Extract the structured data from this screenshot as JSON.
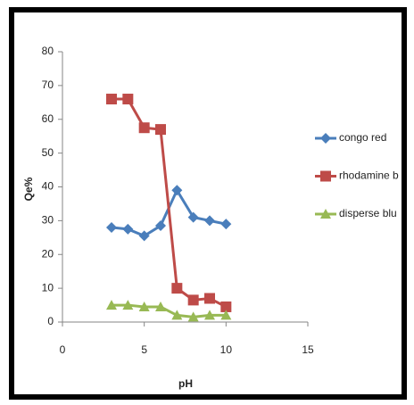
{
  "chart_data": {
    "type": "line",
    "x_label": "pH",
    "y_label": "Qe%",
    "x": [
      3,
      4,
      5,
      6,
      7,
      8,
      9,
      10
    ],
    "series": [
      {
        "name": "congo red",
        "color": "#4a7ebb",
        "marker": "diamond",
        "values": [
          28,
          27.5,
          25.5,
          28.5,
          39,
          31,
          30,
          29
        ]
      },
      {
        "name": "rhodamine b",
        "color": "#be4b48",
        "marker": "square",
        "values": [
          66,
          66,
          57.5,
          57,
          10,
          6.5,
          7,
          4.5
        ]
      },
      {
        "name": "disperse blu",
        "color": "#98b954",
        "marker": "triangle",
        "values": [
          5,
          5,
          4.5,
          4.5,
          2,
          1.5,
          2,
          2
        ]
      }
    ],
    "xlim": [
      0,
      15
    ],
    "xticks": [
      0,
      5,
      10,
      15
    ],
    "ylim": [
      0,
      80
    ],
    "yticks": [
      0,
      10,
      20,
      30,
      40,
      50,
      60,
      70,
      80
    ],
    "legend": "right",
    "grid": false
  }
}
